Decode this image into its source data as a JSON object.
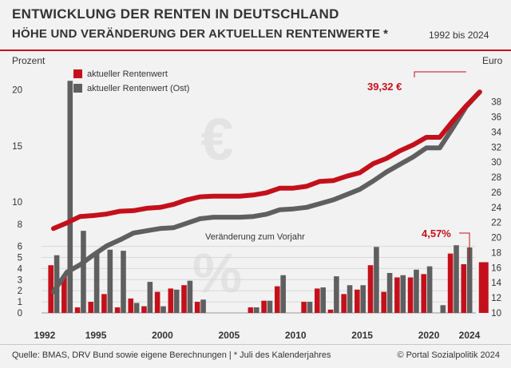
{
  "header": {
    "title": "ENTWICKLUNG DER RENTEN IN DEUTSCHLAND",
    "subtitle": "HÖHE UND VERÄNDERUNG DER AKTUELLEN RENTENWERTE",
    "asterisk": "*",
    "period": "1992 bis 2024"
  },
  "footer": {
    "source": "Quelle: BMAS, DRV Bund sowie eigene Berechnungen | * Juli des Kalenderjahres",
    "copyright": "© Portal Sozialpolitik 2024"
  },
  "watermarks": {
    "euro": "€",
    "percent": "%"
  },
  "colors": {
    "west": "#c4101a",
    "east": "#5f5f5f",
    "accent": "#c4101a"
  },
  "chart_data": {
    "type": "line+bar",
    "title": "Entwicklung der Renten in Deutschland",
    "left_axis_label": "Prozent",
    "right_axis_label": "Euro",
    "left_ticks": [
      "0",
      "1",
      "2",
      "3",
      "4",
      "5",
      "6",
      "8",
      "10",
      "15",
      "20"
    ],
    "right_ticks": [
      "10",
      "12",
      "14",
      "16",
      "18",
      "20",
      "22",
      "24",
      "26",
      "28",
      "30",
      "32",
      "34",
      "36",
      "38"
    ],
    "x_tick_labels": [
      "1992",
      "1995",
      "2000",
      "2005",
      "2010",
      "2015",
      "2020",
      "2024"
    ],
    "legend": [
      "aktueller Rentenwert",
      "aktueller Rentenwert (Ost)"
    ],
    "bar_title": "Veränderung zum Vorjahr",
    "annotation_value": "39,32 €",
    "annotation_percent": "4,57%",
    "years": [
      1992,
      1993,
      1994,
      1995,
      1996,
      1997,
      1998,
      1999,
      2000,
      2001,
      2002,
      2003,
      2004,
      2005,
      2006,
      2007,
      2008,
      2009,
      2010,
      2011,
      2012,
      2013,
      2014,
      2015,
      2016,
      2017,
      2018,
      2019,
      2020,
      2021,
      2022,
      2023,
      2024
    ],
    "rentenwert_west_eur": [
      21.2,
      21.95,
      22.8,
      22.92,
      23.12,
      23.5,
      23.57,
      23.89,
      24.0,
      24.4,
      25.0,
      25.4,
      25.49,
      25.49,
      25.49,
      25.65,
      25.95,
      26.56,
      26.56,
      26.8,
      27.46,
      27.55,
      28.14,
      28.6,
      29.8,
      30.5,
      31.5,
      32.3,
      33.3,
      33.3,
      35.5,
      37.5,
      39.32
    ],
    "rentenwert_ost_eur": [
      12.8,
      15.4,
      16.4,
      17.7,
      18.9,
      19.7,
      20.6,
      20.9,
      21.2,
      21.3,
      21.9,
      22.5,
      22.7,
      22.7,
      22.7,
      22.8,
      23.1,
      23.7,
      23.8,
      24.0,
      24.5,
      25.0,
      25.7,
      26.4,
      27.5,
      28.7,
      29.7,
      30.7,
      31.9,
      31.9,
      34.6,
      37.4,
      39.32
    ],
    "veraenderung_west_pct": [
      4.3,
      3.4,
      0.5,
      1.0,
      1.7,
      0.5,
      1.3,
      0.6,
      1.9,
      2.2,
      2.5,
      1.0,
      0.0,
      0.0,
      0.0,
      0.5,
      1.1,
      2.4,
      0.0,
      1.0,
      2.2,
      0.3,
      1.7,
      2.1,
      4.3,
      1.9,
      3.2,
      3.2,
      3.5,
      0.0,
      5.35,
      4.39,
      4.57
    ],
    "veraenderung_ost_pct": [
      5.2,
      20.8,
      7.4,
      5.4,
      5.7,
      5.6,
      0.9,
      2.8,
      0.6,
      2.1,
      2.9,
      1.2,
      0.0,
      0.0,
      0.0,
      0.5,
      1.1,
      3.4,
      0.0,
      1.0,
      2.3,
      3.3,
      2.5,
      2.5,
      5.95,
      3.6,
      3.4,
      3.9,
      4.2,
      0.7,
      6.1,
      5.9,
      4.57
    ],
    "ylim_percent": [
      0,
      21
    ],
    "ylim_euro": [
      10,
      39.5
    ]
  }
}
